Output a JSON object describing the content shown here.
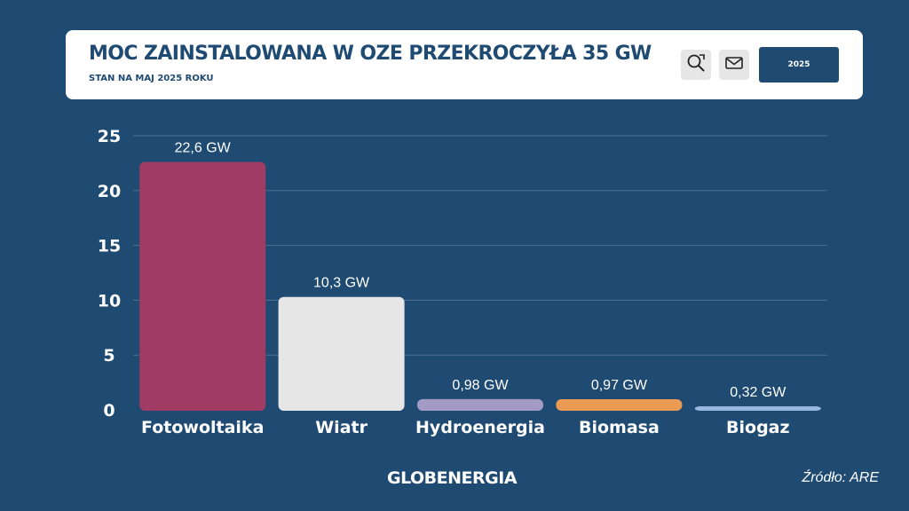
{
  "header": {
    "title": "MOC ZAINSTALOWANA W OZE PRZEKROCZYŁA 35 GW",
    "subtitle": "STAN NA MAJ 2025 ROKU",
    "year_label": "2025",
    "icons": [
      "zoom-icon",
      "mail-icon"
    ]
  },
  "footer": {
    "brand": "GLOBENERGIA",
    "source": "Źródło: ARE"
  },
  "colors": {
    "background": "#1f4a72",
    "bar_colors": [
      "#a03c63",
      "#e6e6e6",
      "#a39bc6",
      "#ec9b54",
      "#98b8e4"
    ]
  },
  "chart_data": {
    "type": "bar",
    "title": "MOC ZAINSTALOWANA W OZE PRZEKROCZYŁA 35 GW",
    "subtitle": "STAN NA MAJ 2025 ROKU",
    "categories": [
      "Fotowoltaika",
      "Wiatr",
      "Hydroenergia",
      "Biomasa",
      "Biogaz"
    ],
    "values": [
      22.6,
      10.3,
      0.98,
      0.97,
      0.32
    ],
    "value_labels": [
      "22,6 GW",
      "10,3 GW",
      "0,98 GW",
      "0,97 GW",
      "0,32 GW"
    ],
    "ylim": [
      0,
      25
    ],
    "yticks": [
      0,
      5,
      10,
      15,
      20,
      25
    ],
    "grid": true,
    "legend": "none"
  }
}
